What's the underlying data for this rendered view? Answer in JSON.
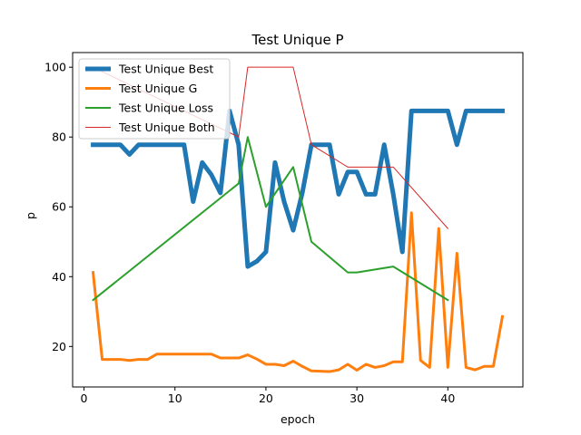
{
  "chart_data": {
    "type": "line",
    "title": "Test Unique P",
    "xlabel": "epoch",
    "ylabel": "p",
    "xlim": [
      -1.25,
      48.25
    ],
    "ylim": [
      8.4,
      104.2
    ],
    "xticks": [
      0,
      10,
      20,
      30,
      40
    ],
    "yticks": [
      20,
      40,
      60,
      80,
      100
    ],
    "grid": false,
    "legend_position": "upper-left",
    "series": [
      {
        "name": "Test Unique Best",
        "color": "#1f77b4",
        "linewidth": 5,
        "x": [
          1,
          2,
          3,
          4,
          5,
          6,
          7,
          8,
          9,
          10,
          11,
          12,
          13,
          14,
          15,
          16,
          17,
          18,
          19,
          20,
          21,
          22,
          23,
          24,
          25,
          26,
          27,
          28,
          29,
          30,
          31,
          32,
          33,
          34,
          35,
          36,
          37,
          38,
          39,
          40,
          41,
          42,
          43,
          44,
          45,
          46
        ],
        "y": [
          77.8,
          77.8,
          77.8,
          77.8,
          75.0,
          77.8,
          77.8,
          77.8,
          77.8,
          77.8,
          77.8,
          61.5,
          72.7,
          69.2,
          64.0,
          87.5,
          77.8,
          42.9,
          44.4,
          47.1,
          72.7,
          61.5,
          53.3,
          64.0,
          77.8,
          77.8,
          77.8,
          63.6,
          70.0,
          70.0,
          63.6,
          63.6,
          77.8,
          63.6,
          47.1,
          87.5,
          87.5,
          87.5,
          87.5,
          87.5,
          77.8,
          87.5,
          87.5,
          87.5,
          87.5,
          87.5
        ]
      },
      {
        "name": "Test Unique G",
        "color": "#ff7f0e",
        "linewidth": 3,
        "x": [
          1,
          2,
          3,
          4,
          5,
          6,
          7,
          8,
          9,
          10,
          11,
          12,
          13,
          14,
          15,
          16,
          17,
          18,
          19,
          20,
          21,
          22,
          23,
          24,
          25,
          26,
          27,
          28,
          29,
          30,
          31,
          32,
          33,
          34,
          35,
          36,
          37,
          38,
          39,
          40,
          41,
          42,
          43,
          44,
          45,
          46
        ],
        "y": [
          41.2,
          16.3,
          16.3,
          16.3,
          16.0,
          16.3,
          16.3,
          17.8,
          17.8,
          17.8,
          17.8,
          17.8,
          17.8,
          17.8,
          16.7,
          16.7,
          16.7,
          17.6,
          16.4,
          14.9,
          14.9,
          14.5,
          15.8,
          14.3,
          13.0,
          12.9,
          12.8,
          13.3,
          14.9,
          13.2,
          14.9,
          14.0,
          14.5,
          15.6,
          15.6,
          58.3,
          16.0,
          14.0,
          53.8,
          14.0,
          46.7,
          14.0,
          13.3,
          14.3,
          14.3,
          28.6
        ]
      },
      {
        "name": "Test Unique Loss",
        "color": "#2ca02c",
        "linewidth": 2,
        "x": [
          1,
          17,
          18,
          20,
          23,
          25,
          29,
          30,
          34,
          40
        ],
        "y": [
          33.3,
          66.7,
          80.0,
          60.0,
          71.4,
          50.0,
          41.2,
          41.2,
          42.9,
          33.3
        ]
      },
      {
        "name": "Test Unique Both",
        "color": "#d62728",
        "linewidth": 1,
        "x": [
          1,
          17,
          18,
          23,
          25,
          29,
          34,
          40
        ],
        "y": [
          100.0,
          80.0,
          100.0,
          100.0,
          77.8,
          71.4,
          71.4,
          53.8
        ]
      }
    ]
  }
}
